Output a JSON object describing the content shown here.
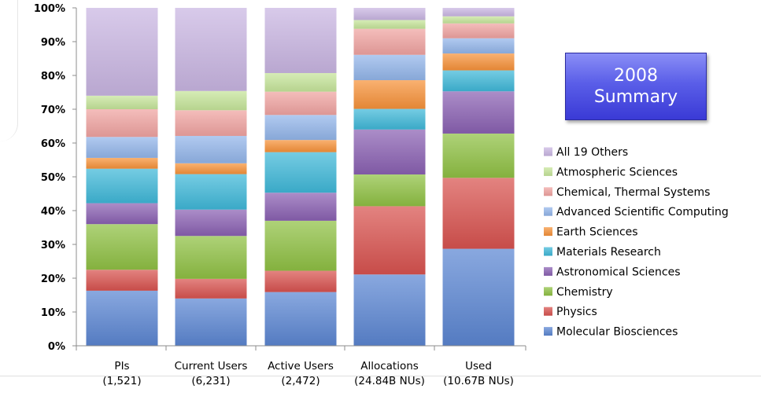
{
  "summary_badge": {
    "line1": "2008",
    "line2": "Summary"
  },
  "chart_data": {
    "type": "bar",
    "stacked": "percent",
    "title": "",
    "xlabel": "",
    "ylabel": "",
    "ylim": [
      0,
      100
    ],
    "y_ticks": [
      "0%",
      "10%",
      "20%",
      "30%",
      "40%",
      "50%",
      "60%",
      "70%",
      "80%",
      "90%",
      "100%"
    ],
    "legend_placement": "right",
    "grid": false,
    "categories": [
      {
        "line1": "PIs",
        "line2": "(1,521)"
      },
      {
        "line1": "Current Users",
        "line2": "(6,231)"
      },
      {
        "line1": "Active Users",
        "line2": "(2,472)"
      },
      {
        "line1": "Allocations",
        "line2": "(24.84B NUs)"
      },
      {
        "line1": "Used",
        "line2": "(10.67B NUs)"
      }
    ],
    "series": [
      {
        "name": "Molecular Biosciences",
        "color": "#5b86d2",
        "values": [
          16.3,
          14.0,
          15.9,
          21.1,
          28.7
        ]
      },
      {
        "name": "Physics",
        "color": "#d8534f",
        "values": [
          6.2,
          5.8,
          6.3,
          20.2,
          21.0
        ]
      },
      {
        "name": "Chemistry",
        "color": "#8fc043",
        "values": [
          13.5,
          12.7,
          14.8,
          9.4,
          13.1
        ]
      },
      {
        "name": "Astronomical Sciences",
        "color": "#8a61b2",
        "values": [
          6.2,
          7.8,
          8.3,
          13.3,
          12.5
        ]
      },
      {
        "name": "Materials Research",
        "color": "#3fb8d8",
        "values": [
          10.2,
          10.5,
          12.0,
          6.1,
          6.2
        ]
      },
      {
        "name": "Earth Sciences",
        "color": "#f7923a",
        "values": [
          3.2,
          3.2,
          3.6,
          8.5,
          5.0
        ]
      },
      {
        "name": "Advanced Scientific Computing",
        "color": "#93b6ea",
        "values": [
          6.2,
          8.1,
          7.4,
          7.5,
          4.5
        ]
      },
      {
        "name": "Chemical, Thermal Systems",
        "color": "#f0a3a1",
        "values": [
          8.2,
          7.6,
          6.9,
          7.7,
          4.4
        ]
      },
      {
        "name": "Atmospheric Sciences",
        "color": "#c6e59a",
        "values": [
          4.0,
          5.7,
          5.5,
          2.6,
          2.1
        ]
      },
      {
        "name": "All 19 Others",
        "color": "#c9b6e2",
        "values": [
          26.0,
          24.6,
          19.3,
          3.6,
          2.5
        ]
      }
    ]
  }
}
